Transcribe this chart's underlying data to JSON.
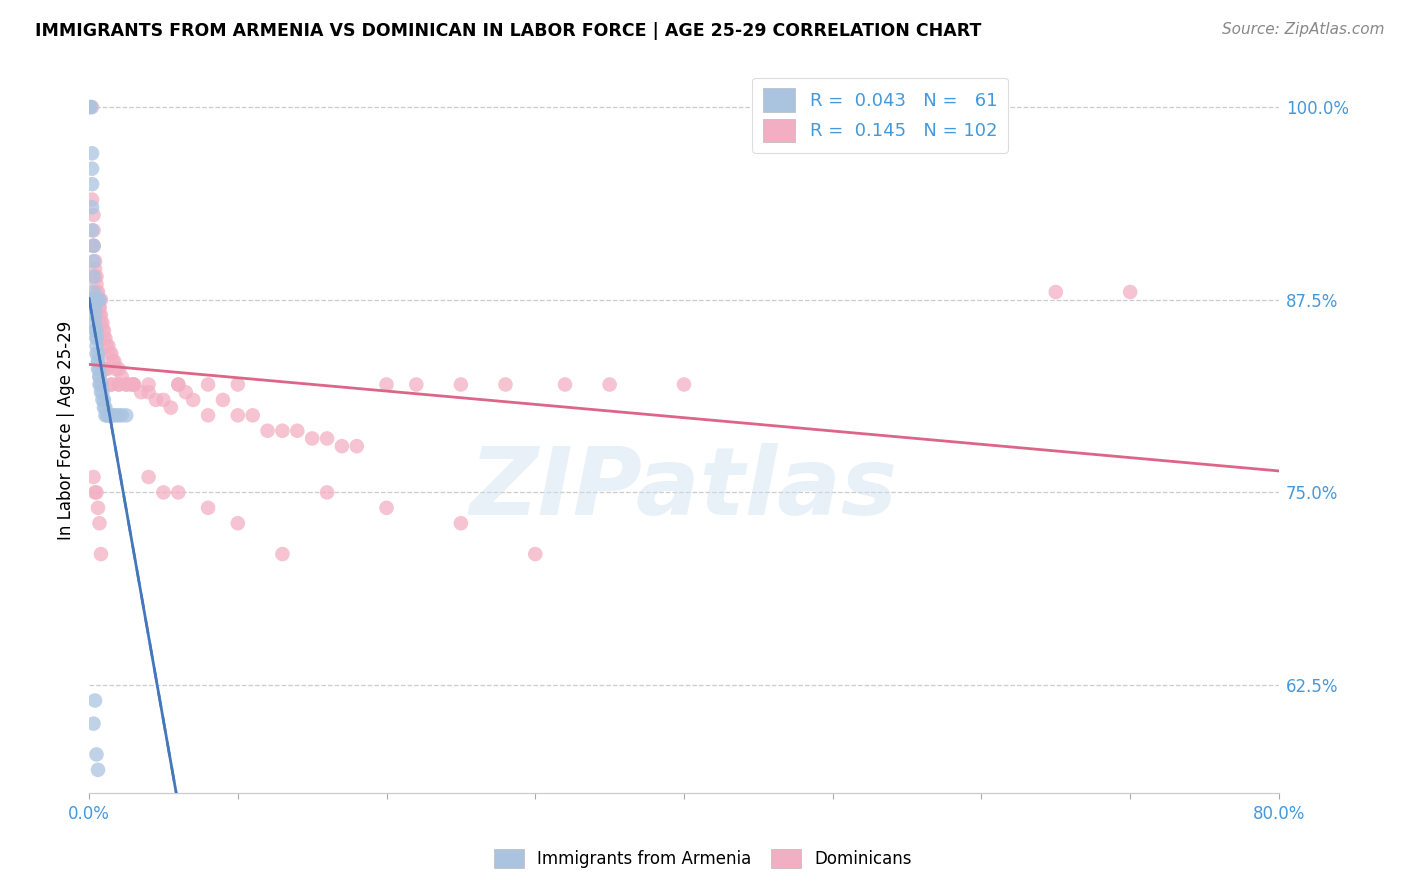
{
  "title": "IMMIGRANTS FROM ARMENIA VS DOMINICAN IN LABOR FORCE | AGE 25-29 CORRELATION CHART",
  "source": "Source: ZipAtlas.com",
  "ylabel": "In Labor Force | Age 25-29",
  "xlim": [
    0.0,
    0.8
  ],
  "ylim": [
    0.555,
    1.025
  ],
  "yticks": [
    0.625,
    0.75,
    0.875,
    1.0
  ],
  "ytick_labels": [
    "62.5%",
    "75.0%",
    "87.5%",
    "100.0%"
  ],
  "xticks": [
    0.0,
    0.1,
    0.2,
    0.3,
    0.4,
    0.5,
    0.6,
    0.7,
    0.8
  ],
  "xtick_labels": [
    "0.0%",
    "",
    "",
    "",
    "",
    "",
    "",
    "",
    "80.0%"
  ],
  "armenia_R": 0.043,
  "armenia_N": 61,
  "dominican_R": 0.145,
  "dominican_N": 102,
  "armenia_color": "#aac4e0",
  "dominican_color": "#f2afc3",
  "armenia_line_color": "#4477bb",
  "dominican_line_color": "#dd6688",
  "tick_color": "#4499dd",
  "watermark": "ZIPatlas",
  "armenia_x": [
    0.001,
    0.001,
    0.002,
    0.002,
    0.002,
    0.002,
    0.002,
    0.003,
    0.003,
    0.003,
    0.003,
    0.003,
    0.003,
    0.004,
    0.004,
    0.004,
    0.004,
    0.004,
    0.004,
    0.005,
    0.005,
    0.005,
    0.005,
    0.005,
    0.006,
    0.006,
    0.006,
    0.006,
    0.007,
    0.007,
    0.007,
    0.007,
    0.008,
    0.008,
    0.008,
    0.009,
    0.009,
    0.01,
    0.01,
    0.011,
    0.011,
    0.012,
    0.013,
    0.014,
    0.015,
    0.016,
    0.018,
    0.02,
    0.022,
    0.025,
    0.003,
    0.004,
    0.005,
    0.006,
    0.002,
    0.003,
    0.003,
    0.004,
    0.005,
    0.006,
    0.007
  ],
  "armenia_y": [
    1.0,
    1.0,
    0.97,
    0.96,
    0.95,
    0.935,
    0.92,
    0.91,
    0.9,
    0.89,
    0.88,
    0.875,
    0.875,
    0.875,
    0.875,
    0.87,
    0.865,
    0.86,
    0.855,
    0.855,
    0.85,
    0.85,
    0.845,
    0.84,
    0.84,
    0.835,
    0.835,
    0.83,
    0.83,
    0.825,
    0.825,
    0.82,
    0.82,
    0.82,
    0.815,
    0.815,
    0.81,
    0.81,
    0.805,
    0.805,
    0.8,
    0.8,
    0.8,
    0.8,
    0.8,
    0.8,
    0.8,
    0.8,
    0.8,
    0.8,
    0.6,
    0.615,
    0.58,
    0.57,
    0.875,
    0.875,
    0.875,
    0.875,
    0.875,
    0.875,
    0.875
  ],
  "dominican_x": [
    0.001,
    0.002,
    0.002,
    0.003,
    0.003,
    0.003,
    0.003,
    0.004,
    0.004,
    0.004,
    0.005,
    0.005,
    0.005,
    0.006,
    0.006,
    0.006,
    0.007,
    0.007,
    0.007,
    0.008,
    0.008,
    0.009,
    0.009,
    0.01,
    0.01,
    0.011,
    0.012,
    0.013,
    0.014,
    0.015,
    0.016,
    0.017,
    0.018,
    0.02,
    0.022,
    0.025,
    0.028,
    0.03,
    0.035,
    0.04,
    0.045,
    0.05,
    0.055,
    0.06,
    0.065,
    0.07,
    0.08,
    0.09,
    0.1,
    0.11,
    0.12,
    0.13,
    0.14,
    0.15,
    0.16,
    0.17,
    0.18,
    0.2,
    0.22,
    0.25,
    0.28,
    0.32,
    0.35,
    0.4,
    0.003,
    0.004,
    0.005,
    0.006,
    0.007,
    0.008,
    0.01,
    0.012,
    0.015,
    0.02,
    0.025,
    0.03,
    0.04,
    0.05,
    0.06,
    0.08,
    0.1,
    0.13,
    0.16,
    0.2,
    0.25,
    0.3,
    0.003,
    0.004,
    0.005,
    0.006,
    0.007,
    0.008,
    0.01,
    0.015,
    0.02,
    0.03,
    0.04,
    0.06,
    0.08,
    0.1,
    0.65,
    0.7
  ],
  "dominican_y": [
    0.875,
    1.0,
    0.94,
    0.93,
    0.92,
    0.91,
    0.91,
    0.9,
    0.895,
    0.89,
    0.89,
    0.885,
    0.88,
    0.88,
    0.875,
    0.875,
    0.87,
    0.87,
    0.865,
    0.865,
    0.86,
    0.86,
    0.855,
    0.855,
    0.85,
    0.85,
    0.845,
    0.845,
    0.84,
    0.84,
    0.835,
    0.835,
    0.83,
    0.83,
    0.825,
    0.82,
    0.82,
    0.82,
    0.815,
    0.815,
    0.81,
    0.81,
    0.805,
    0.82,
    0.815,
    0.81,
    0.8,
    0.81,
    0.8,
    0.8,
    0.79,
    0.79,
    0.79,
    0.785,
    0.785,
    0.78,
    0.78,
    0.82,
    0.82,
    0.82,
    0.82,
    0.82,
    0.82,
    0.82,
    0.875,
    0.875,
    0.875,
    0.875,
    0.875,
    0.875,
    0.83,
    0.83,
    0.82,
    0.82,
    0.82,
    0.82,
    0.76,
    0.75,
    0.75,
    0.74,
    0.73,
    0.71,
    0.75,
    0.74,
    0.73,
    0.71,
    0.76,
    0.75,
    0.75,
    0.74,
    0.73,
    0.71,
    0.83,
    0.82,
    0.82,
    0.82,
    0.82,
    0.82,
    0.82,
    0.82,
    0.88,
    0.88
  ]
}
